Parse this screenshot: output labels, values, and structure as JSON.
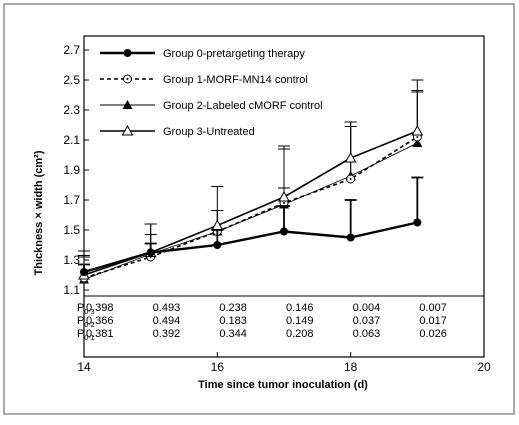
{
  "chart_data": {
    "type": "line",
    "xlabel": "Time since tumor inoculation (d)",
    "ylabel": "Thickness × width (cm²)",
    "xlim": [
      14,
      20
    ],
    "ylim": [
      1.1,
      2.8
    ],
    "x_ticks": [
      "14",
      "16",
      "18",
      "20"
    ],
    "y_ticks": [
      "1.1",
      "1.3",
      "1.5",
      "1.7",
      "1.9",
      "2.1",
      "2.3",
      "2.5",
      "2.7"
    ],
    "legend_position": "top-left",
    "grid": false,
    "series": [
      {
        "name": "Group 0-pretargeting therapy",
        "marker": "filled-circle",
        "line_style": "thick-solid",
        "x": [
          14,
          15,
          16,
          17,
          18,
          19
        ],
        "y": [
          1.22,
          1.35,
          1.4,
          1.49,
          1.45,
          1.55
        ],
        "error_upper": [
          0.05,
          0.06,
          0.1,
          0.17,
          0.25,
          0.3
        ]
      },
      {
        "name": "Group 1-MORF-MN14 control",
        "marker": "open-circle-dot",
        "line_style": "dashed",
        "x": [
          14,
          15,
          16,
          17,
          18,
          19
        ],
        "y": [
          1.18,
          1.32,
          1.49,
          1.68,
          1.84,
          2.12
        ],
        "error_upper": [
          0.18,
          0.22,
          0.14,
          0.38,
          0.38,
          0.3
        ]
      },
      {
        "name": "Group 2-Labeled cMORF control",
        "marker": "filled-triangle",
        "line_style": "thin-solid",
        "x": [
          14,
          15,
          16,
          17,
          18,
          19
        ],
        "y": [
          1.17,
          1.34,
          1.49,
          1.67,
          1.86,
          2.08
        ],
        "error_upper": [
          0.15,
          0.2,
          0.3,
          0.11,
          0.33,
          0.35
        ]
      },
      {
        "name": "Group 3-Untreated",
        "marker": "open-triangle",
        "line_style": "solid",
        "x": [
          14,
          15,
          16,
          17,
          18,
          19
        ],
        "y": [
          1.2,
          1.35,
          1.53,
          1.72,
          1.98,
          2.16
        ],
        "error_upper": [
          0.13,
          0.12,
          0.1,
          0.32,
          0.24,
          0.34
        ]
      }
    ],
    "p_table": {
      "row_labels": [
        {
          "main": "P",
          "sub": "0-3"
        },
        {
          "main": "P",
          "sub": "0-2"
        },
        {
          "main": "P",
          "sub": "0-1"
        }
      ],
      "columns_x": [
        14,
        15,
        16,
        17,
        18,
        19
      ],
      "rows": [
        [
          "0.398",
          "0.493",
          "0.238",
          "0.146",
          "0.004",
          "0.007"
        ],
        [
          "0.366",
          "0.494",
          "0.183",
          "0.149",
          "0.037",
          "0.017"
        ],
        [
          "0.381",
          "0.392",
          "0.344",
          "0.208",
          "0.063",
          "0.026"
        ]
      ]
    }
  }
}
